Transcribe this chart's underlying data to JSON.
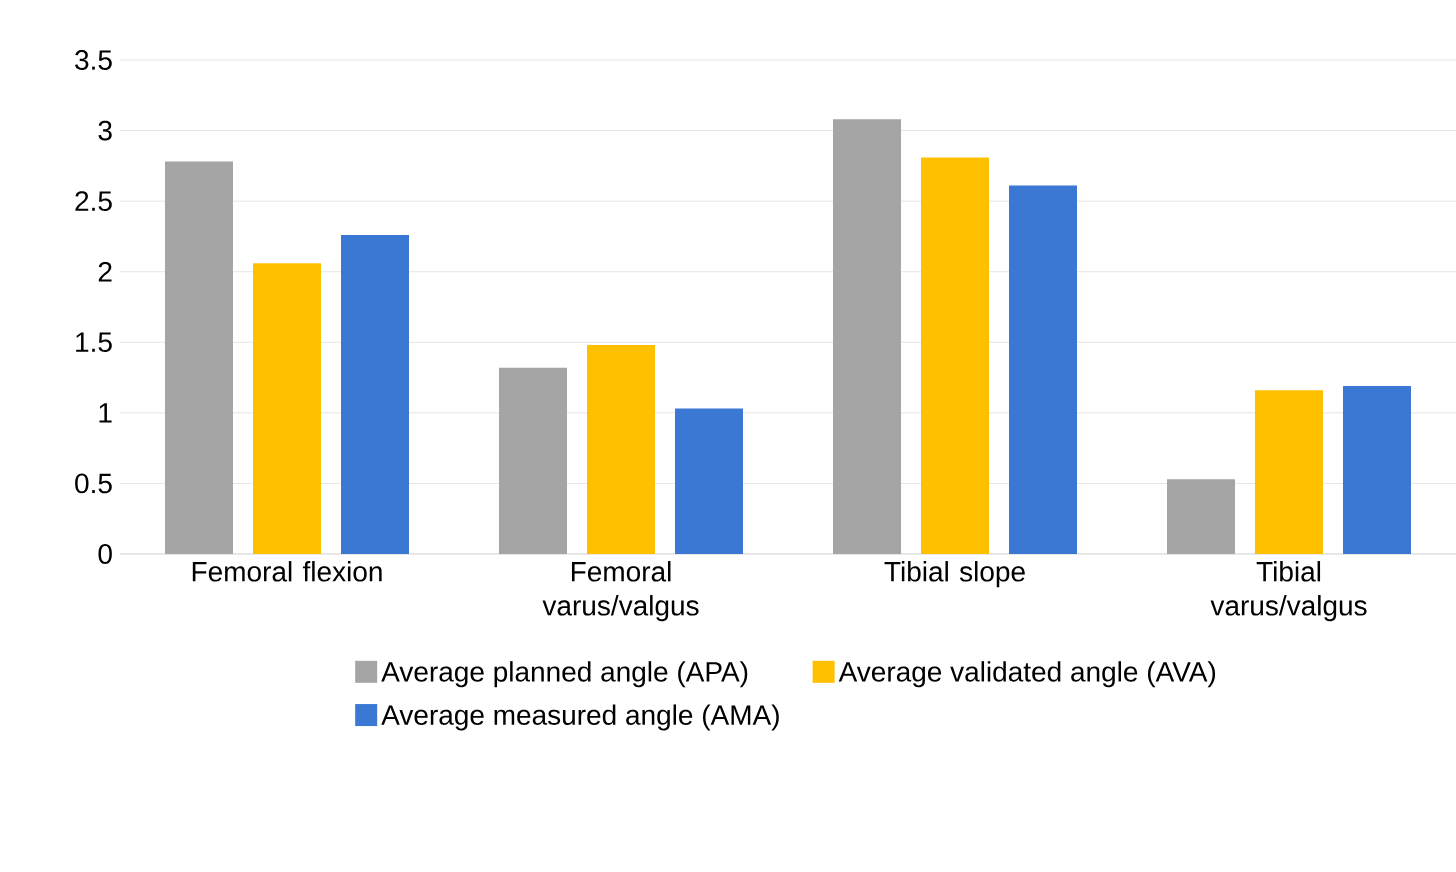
{
  "chart_data": {
    "type": "bar",
    "categories": [
      "Femoral flexion",
      "Femoral varus/valgus",
      "Tibial slope",
      "Tibial varus/valgus"
    ],
    "series": [
      {
        "name": "Average planned angle (APA)",
        "color": "#a5a5a5",
        "values": [
          2.78,
          1.32,
          3.08,
          0.53
        ]
      },
      {
        "name": "Average validated angle (AVA)",
        "color": "#ffc000",
        "values": [
          2.06,
          1.48,
          2.81,
          1.16
        ]
      },
      {
        "name": "Average measured angle (AMA)",
        "color": "#3a78d4",
        "values": [
          2.26,
          1.03,
          2.61,
          1.19
        ]
      }
    ],
    "ylim": [
      0,
      3.5
    ],
    "yticks": [
      0,
      0.5,
      1,
      1.5,
      2,
      2.5,
      3,
      3.5
    ],
    "grid": "y",
    "legend": "bottom"
  }
}
